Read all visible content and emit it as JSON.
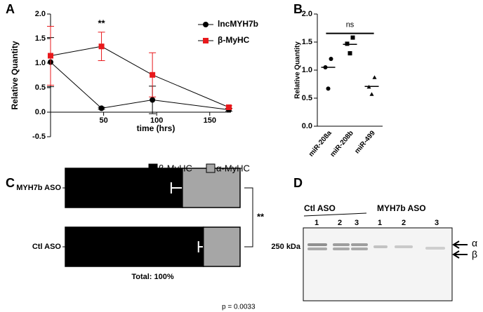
{
  "chart_data": [
    {
      "type": "line",
      "panel": "A",
      "ylabel": "Relative Quantity",
      "xlabel": "time (hrs)",
      "annotation": "**",
      "x": [
        0,
        48,
        96,
        168
      ],
      "xlim": [
        0,
        170
      ],
      "xticks": [
        50,
        100,
        150
      ],
      "ylim": [
        -0.5,
        2.0
      ],
      "yticks": [
        -0.5,
        {
          "value": 0,
          "label": "0.0"
        },
        0.5,
        {
          "value": 1,
          "label": "1.0"
        },
        1.5,
        {
          "value": 2,
          "label": "2.0"
        }
      ],
      "legend": "upper right",
      "series": [
        {
          "name": "lncMYH7b",
          "color": "#000000",
          "marker": "circle",
          "values": [
            1.02,
            0.08,
            0.25,
            0.05
          ],
          "errors": [
            0.5,
            0.02,
            0.28,
            0.03
          ]
        },
        {
          "name": "β-MyHC",
          "color": "#e8191c",
          "marker": "square",
          "values": [
            1.15,
            1.34,
            0.76,
            0.1
          ],
          "errors": [
            0.6,
            0.29,
            0.45,
            0.03
          ]
        }
      ]
    },
    {
      "type": "strip",
      "panel": "B",
      "ylabel": "Relative Quantity",
      "annotation": "ns",
      "categories": [
        "miR-208a",
        "miR-208b",
        "miR-499"
      ],
      "ylim": [
        0,
        2.0
      ],
      "yticks": [
        {
          "value": 0,
          "label": "0.0"
        },
        0.5,
        {
          "value": 1,
          "label": "1.0"
        },
        1.5,
        {
          "value": 2,
          "label": "2.0"
        }
      ],
      "groups": [
        {
          "marker": "circle",
          "values": [
            1.2,
            1.05,
            0.67
          ],
          "mean": 1.05
        },
        {
          "marker": "square",
          "values": [
            1.58,
            1.47,
            1.3
          ],
          "mean": 1.46
        },
        {
          "marker": "triangle",
          "values": [
            0.87,
            0.7,
            0.57
          ],
          "mean": 0.71
        }
      ]
    },
    {
      "type": "stacked_barh",
      "panel": "C",
      "annotation": "**",
      "xlabel": "Total: 100%",
      "note": "p = 0.0033",
      "legend": "top",
      "categories": [
        "MYH7b ASO",
        "Ctl ASO"
      ],
      "xlim": [
        0,
        100
      ],
      "series": [
        {
          "name": "β-MyHC",
          "color": "#000000",
          "values": [
            67,
            79
          ],
          "errors": [
            6.4,
            2.8
          ]
        },
        {
          "name": "α-MyHC",
          "color": "#a6a6a6",
          "values": [
            33,
            21
          ]
        }
      ]
    }
  ],
  "blot": {
    "panel": "D",
    "marker": "250 kDa",
    "bands": [
      "α",
      "β"
    ],
    "groups": [
      {
        "label": "Ctl ASO",
        "lanes": [
          "1",
          "2",
          "3"
        ]
      },
      {
        "label": "MYH7b ASO",
        "lanes": [
          "1",
          "2",
          "3"
        ]
      }
    ]
  }
}
